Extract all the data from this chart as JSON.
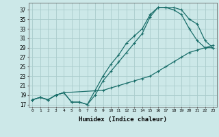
{
  "xlabel": "Humidex (Indice chaleur)",
  "bg_color": "#cce8e8",
  "grid_color": "#aacccc",
  "line_color": "#1a6e6a",
  "xlim": [
    -0.5,
    23.5
  ],
  "ylim": [
    16.5,
    38.5
  ],
  "xticks": [
    0,
    1,
    2,
    3,
    4,
    5,
    6,
    7,
    8,
    9,
    10,
    11,
    12,
    13,
    14,
    15,
    16,
    17,
    18,
    19,
    20,
    21,
    22,
    23
  ],
  "yticks": [
    17,
    19,
    21,
    23,
    25,
    27,
    29,
    31,
    33,
    35,
    37
  ],
  "series": [
    {
      "x": [
        0,
        1,
        2,
        3,
        4,
        5,
        6,
        7,
        8,
        9,
        10,
        11,
        12,
        13,
        14,
        15,
        16,
        17,
        18,
        19,
        20,
        21,
        22,
        23
      ],
      "y": [
        18,
        18.5,
        18,
        19,
        19.5,
        17.5,
        17.5,
        17,
        19,
        22,
        24,
        26,
        28,
        30,
        32,
        35.5,
        37.5,
        37.5,
        37.5,
        37,
        35,
        34,
        30.5,
        29
      ]
    },
    {
      "x": [
        0,
        1,
        2,
        3,
        4,
        5,
        6,
        7,
        8,
        9,
        10,
        11,
        12,
        13,
        14,
        15,
        16,
        17,
        18,
        19,
        20,
        21,
        22,
        23
      ],
      "y": [
        18,
        18.5,
        18,
        19,
        19.5,
        17.5,
        17.5,
        17,
        20,
        23,
        25.5,
        27.5,
        30,
        31.5,
        33,
        36,
        37.5,
        37.5,
        37,
        36,
        33,
        30.5,
        29,
        29
      ]
    },
    {
      "x": [
        0,
        1,
        2,
        3,
        4,
        9,
        10,
        11,
        12,
        13,
        14,
        15,
        16,
        17,
        18,
        19,
        20,
        21,
        22,
        23
      ],
      "y": [
        18,
        18.5,
        18,
        19,
        19.5,
        20,
        20.5,
        21,
        21.5,
        22,
        22.5,
        23,
        24,
        25,
        26,
        27,
        28,
        28.5,
        29,
        29.5
      ]
    }
  ]
}
